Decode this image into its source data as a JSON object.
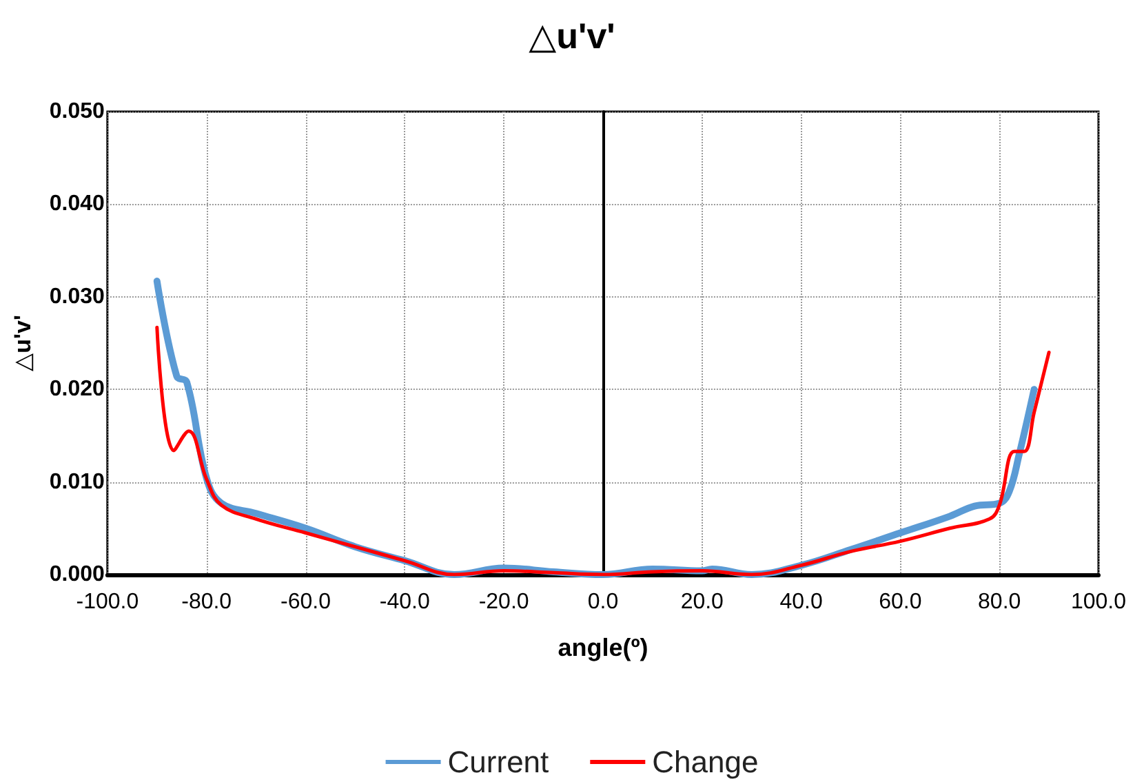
{
  "chart_data": {
    "type": "line",
    "title": "△u'v'",
    "xlabel": "angle(º)",
    "ylabel": "△u'v'",
    "series": [
      {
        "name": "Current",
        "color": "#5b9bd5",
        "x": [
          -90,
          -86,
          -84,
          -80,
          -77,
          -70,
          -60,
          -50,
          -40,
          -30,
          -20,
          -10,
          0,
          10,
          20,
          22,
          30,
          40,
          50,
          60,
          70,
          75,
          80,
          82,
          84,
          87
        ],
        "values": [
          0.0317,
          0.0214,
          0.0208,
          0.0104,
          0.0077,
          0.0066,
          0.005,
          0.003,
          0.0015,
          0,
          0.0007,
          0.0003,
          0,
          0.0006,
          0.0004,
          0.0006,
          0,
          0.001,
          0.0027,
          0.0045,
          0.0063,
          0.0074,
          0.0077,
          0.009,
          0.013,
          0.02
        ]
      },
      {
        "name": "Change",
        "color": "#ff0000",
        "x": [
          -90,
          -86.6,
          -83.6,
          -80,
          -77,
          -70,
          -60,
          -50,
          -40,
          -30,
          -20,
          -10,
          0,
          10,
          20,
          30,
          40,
          50,
          60,
          70,
          78,
          80,
          83,
          85,
          87,
          90
        ],
        "values": [
          0.0267,
          0.0134,
          0.0155,
          0.0103,
          0.0075,
          0.006,
          0.0045,
          0.003,
          0.0015,
          0,
          0.0004,
          0.0002,
          0,
          0.0003,
          0.0004,
          0,
          0.001,
          0.0025,
          0.0036,
          0.005,
          0.006,
          0.0075,
          0.0133,
          0.0133,
          0.0175,
          0.024
        ]
      }
    ],
    "xlim": [
      -100,
      100
    ],
    "xticks": [
      {
        "value": -100,
        "label": "-100.0"
      },
      {
        "value": -80,
        "label": "-80.0"
      },
      {
        "value": -60,
        "label": "-60.0"
      },
      {
        "value": -40,
        "label": "-40.0"
      },
      {
        "value": -20,
        "label": "-20.0"
      },
      {
        "value": 0,
        "label": "0.0"
      },
      {
        "value": 20,
        "label": "20.0"
      },
      {
        "value": 40,
        "label": "40.0"
      },
      {
        "value": 60,
        "label": "60.0"
      },
      {
        "value": 80,
        "label": "80.0"
      },
      {
        "value": 100,
        "label": "100.0"
      }
    ],
    "ylim": [
      0,
      0.05
    ],
    "yticks": [
      {
        "value": 0,
        "label": "0.000"
      },
      {
        "value": 0.01,
        "label": "0.010"
      },
      {
        "value": 0.02,
        "label": "0.020"
      },
      {
        "value": 0.03,
        "label": "0.030"
      },
      {
        "value": 0.04,
        "label": "0.040"
      },
      {
        "value": 0.05,
        "label": "0.050"
      }
    ],
    "grid": true,
    "legend": "bottom",
    "marker": "none",
    "line_style": "solid"
  }
}
